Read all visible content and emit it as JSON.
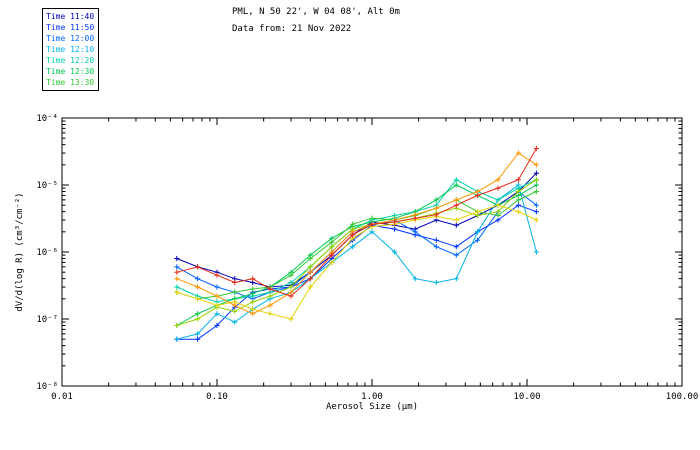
{
  "header": {
    "title_line1": "PML, N 50 22', W 04 08', Alt 0m",
    "title_line2": "Data from: 21 Nov 2022"
  },
  "chart_data": {
    "type": "line",
    "title": "PML, N 50 22', W 04 08', Alt 0m",
    "subtitle": "Data from: 21 Nov 2022",
    "xlabel": "Aerosol Size (μm)",
    "ylabel": "dV/d(log R) (cm³/cm⁻²)",
    "xscale": "log",
    "yscale": "log",
    "xlim": [
      0.01,
      100
    ],
    "ylim": [
      1e-08,
      0.0001
    ],
    "xtick_labels": [
      "0.01",
      "0.10",
      "1.00",
      "10.00",
      "100.00"
    ],
    "ytick_labels": [
      "10⁻⁸",
      "10⁻⁷",
      "10⁻⁶",
      "10⁻⁵",
      "10⁻⁴"
    ],
    "grid": false,
    "legend_position": "top-left",
    "marker": "plus",
    "x": [
      0.055,
      0.075,
      0.1,
      0.13,
      0.17,
      0.22,
      0.3,
      0.4,
      0.55,
      0.75,
      1.0,
      1.4,
      1.9,
      2.6,
      3.5,
      4.8,
      6.5,
      8.8,
      11.5
    ],
    "series": [
      {
        "name": "Time 11:40",
        "color": "#0000b4",
        "in_legend": true,
        "values": [
          8e-07,
          6e-07,
          5e-07,
          4e-07,
          3.5e-07,
          3e-07,
          3.2e-07,
          5e-07,
          9e-07,
          1.8e-06,
          2.8e-06,
          2.5e-06,
          2.2e-06,
          3e-06,
          2.5e-06,
          3.5e-06,
          5e-06,
          8e-06,
          1.5e-05
        ]
      },
      {
        "name": "Time 11:50",
        "color": "#0032ff",
        "in_legend": true,
        "values": [
          5e-08,
          5e-08,
          8e-08,
          1.5e-07,
          2.5e-07,
          2.8e-07,
          3e-07,
          4e-07,
          8e-07,
          1.5e-06,
          2.5e-06,
          2.2e-06,
          1.8e-06,
          1.5e-06,
          1.2e-06,
          2e-06,
          3e-06,
          5e-06,
          4e-06
        ]
      },
      {
        "name": "Time 12:00",
        "color": "#0064ff",
        "in_legend": true,
        "values": [
          6e-07,
          4e-07,
          3e-07,
          2.5e-07,
          2e-07,
          2.5e-07,
          3e-07,
          5e-07,
          1e-06,
          2e-06,
          2.5e-06,
          3e-06,
          2e-06,
          1.2e-06,
          9e-07,
          1.5e-06,
          4e-06,
          8e-06,
          5e-06
        ]
      },
      {
        "name": "Time 12:10",
        "color": "#00b4e6",
        "in_legend": true,
        "values": [
          5e-08,
          6e-08,
          1.2e-07,
          9e-08,
          1.4e-07,
          2e-07,
          2.5e-07,
          4e-07,
          7e-07,
          1.2e-06,
          2e-06,
          1e-06,
          4e-07,
          3.5e-07,
          4e-07,
          2e-06,
          6e-06,
          1e-05,
          1e-06
        ]
      },
      {
        "name": "Time 12:20",
        "color": "#00d2aa",
        "in_legend": true,
        "values": [
          3e-07,
          2.2e-07,
          1.8e-07,
          2e-07,
          2.2e-07,
          2.5e-07,
          3.5e-07,
          6e-07,
          1.2e-06,
          2.2e-06,
          3e-06,
          3.5e-06,
          4e-06,
          5e-06,
          1.2e-05,
          8e-06,
          6e-06,
          9e-06,
          1.2e-05
        ]
      },
      {
        "name": "Time 12:30",
        "color": "#00c850",
        "in_legend": true,
        "values": [
          8e-08,
          1.2e-07,
          1.6e-07,
          2e-07,
          2.4e-07,
          3e-07,
          5e-07,
          9e-07,
          1.6e-06,
          2.4e-06,
          2.8e-06,
          3.2e-06,
          4e-06,
          6e-06,
          1e-05,
          7e-06,
          5e-06,
          7e-06,
          1e-05
        ]
      },
      {
        "name": "Time 13:30",
        "color": "#32c832",
        "in_legend": true,
        "values": [
          2.5e-07,
          2e-07,
          2.2e-07,
          2.5e-07,
          2.8e-07,
          3e-07,
          4.5e-07,
          8e-07,
          1.4e-06,
          2.6e-06,
          3.2e-06,
          3e-06,
          3.5e-06,
          4.5e-06,
          6e-06,
          4e-06,
          3.5e-06,
          6e-06,
          8e-06
        ]
      },
      {
        "name": "series-8",
        "color": "#96d200",
        "in_legend": false,
        "values": [
          8e-08,
          1e-07,
          1.5e-07,
          1.3e-07,
          1.8e-07,
          2.2e-07,
          3e-07,
          6e-07,
          1.2e-06,
          2.2e-06,
          2.6e-06,
          2.8e-06,
          3.2e-06,
          3.8e-06,
          4.5e-06,
          3.5e-06,
          4e-06,
          8e-06,
          1.2e-05
        ]
      },
      {
        "name": "series-9",
        "color": "#e6d200",
        "in_legend": false,
        "values": [
          2.5e-07,
          2e-07,
          1.6e-07,
          1.8e-07,
          1.4e-07,
          1.2e-07,
          1e-07,
          3e-07,
          7e-07,
          1.6e-06,
          2.4e-06,
          2.6e-06,
          3e-06,
          3.4e-06,
          3e-06,
          4e-06,
          5e-06,
          4e-06,
          3e-06
        ]
      },
      {
        "name": "series-10",
        "color": "#ff9600",
        "in_legend": false,
        "values": [
          4e-07,
          3e-07,
          2.2e-07,
          1.6e-07,
          1.2e-07,
          1.6e-07,
          2.5e-07,
          5e-07,
          1e-06,
          2e-06,
          2.6e-06,
          3e-06,
          3.6e-06,
          4.5e-06,
          6e-06,
          8e-06,
          1.2e-05,
          3e-05,
          2e-05
        ]
      },
      {
        "name": "series-11",
        "color": "#e62814",
        "in_legend": false,
        "values": [
          5e-07,
          6e-07,
          4.5e-07,
          3.5e-07,
          4e-07,
          2.8e-07,
          2.2e-07,
          4e-07,
          9e-07,
          1.8e-06,
          2.6e-06,
          2.8e-06,
          3.2e-06,
          3.6e-06,
          5e-06,
          7e-06,
          9e-06,
          1.2e-05,
          3.5e-05
        ]
      }
    ]
  }
}
